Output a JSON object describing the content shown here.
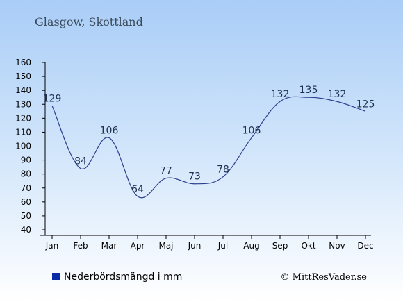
{
  "chart_data": {
    "type": "line",
    "title": "Glasgow, Skottland",
    "categories": [
      "Jan",
      "Feb",
      "Mar",
      "Apr",
      "Maj",
      "Jun",
      "Jul",
      "Aug",
      "Sep",
      "Okt",
      "Nov",
      "Dec"
    ],
    "series": [
      {
        "name": "Nederbördsmängd i mm",
        "values": [
          129,
          84,
          106,
          64,
          77,
          73,
          78,
          106,
          132,
          135,
          132,
          125
        ],
        "color": "#2b3f8e"
      }
    ],
    "ylim": [
      40,
      160
    ],
    "yticks": [
      40,
      50,
      60,
      70,
      80,
      90,
      100,
      110,
      120,
      130,
      140,
      150,
      160
    ],
    "legend_position": "bottom-left",
    "legend_marker_color": "#0a2aa6",
    "grid": false
  },
  "credit": "© MittResVader.se"
}
